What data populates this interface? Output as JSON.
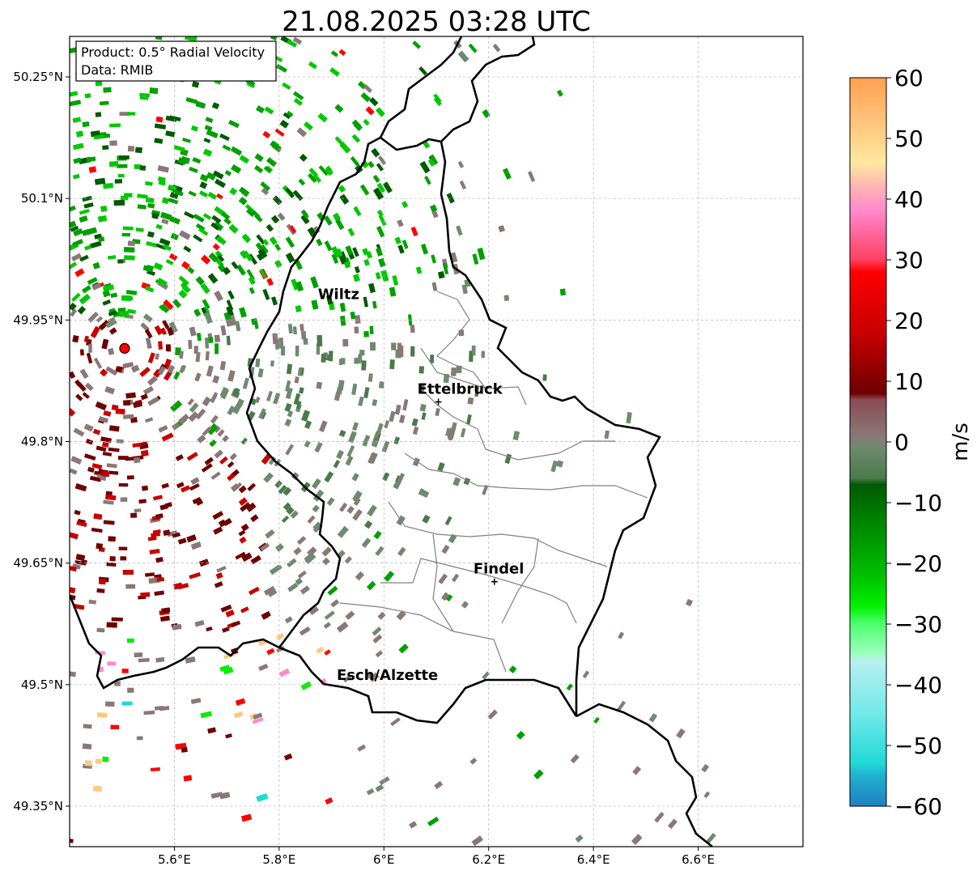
{
  "title": "21.08.2025 03:28 UTC",
  "info_box": {
    "line1": "Product: 0.5° Radial Velocity",
    "line2": "Data: RMIB"
  },
  "map": {
    "lon_range": [
      5.4,
      6.8
    ],
    "lat_range": [
      49.3,
      50.3
    ],
    "radar_site": {
      "lon": 5.505,
      "lat": 49.915
    },
    "grid": true
  },
  "axes": {
    "x_ticks": [
      {
        "value": 5.6,
        "label": "5.6°E"
      },
      {
        "value": 5.8,
        "label": "5.8°E"
      },
      {
        "value": 6.0,
        "label": "6°E"
      },
      {
        "value": 6.2,
        "label": "6.2°E"
      },
      {
        "value": 6.4,
        "label": "6.4°E"
      },
      {
        "value": 6.6,
        "label": "6.6°E"
      }
    ],
    "y_ticks": [
      {
        "value": 50.25,
        "label": "50.25°N"
      },
      {
        "value": 50.1,
        "label": "50.1°N"
      },
      {
        "value": 49.95,
        "label": "49.95°N"
      },
      {
        "value": 49.8,
        "label": "49.8°N"
      },
      {
        "value": 49.65,
        "label": "49.65°N"
      },
      {
        "value": 49.5,
        "label": "49.5°N"
      },
      {
        "value": 49.35,
        "label": "49.35°N"
      }
    ]
  },
  "places": [
    {
      "name": "Wiltz",
      "lon": 5.945,
      "lat": 49.966,
      "marker": false
    },
    {
      "name": "Ettelbruck",
      "lon": 6.104,
      "lat": 49.849,
      "marker": true
    },
    {
      "name": "Findel",
      "lon": 6.211,
      "lat": 49.627,
      "marker": true
    },
    {
      "name": "Esch/Alzette",
      "lon": 5.981,
      "lat": 49.496,
      "marker": false
    }
  ],
  "colorbar": {
    "label": "m/s",
    "range": [
      -60,
      60
    ],
    "ticks": [
      {
        "value": 60,
        "label": "60"
      },
      {
        "value": 50,
        "label": "50"
      },
      {
        "value": 40,
        "label": "40"
      },
      {
        "value": 30,
        "label": "30"
      },
      {
        "value": 20,
        "label": "20"
      },
      {
        "value": 10,
        "label": "10"
      },
      {
        "value": 0,
        "label": "0"
      },
      {
        "value": -10,
        "label": "−10"
      },
      {
        "value": -20,
        "label": "−20"
      },
      {
        "value": -30,
        "label": "−30"
      },
      {
        "value": -40,
        "label": "−40"
      },
      {
        "value": -50,
        "label": "−50"
      },
      {
        "value": -60,
        "label": "−60"
      }
    ],
    "stops": [
      {
        "value": 60,
        "color": "#ffa050"
      },
      {
        "value": 52,
        "color": "#ffc880"
      },
      {
        "value": 46,
        "color": "#ffe8a0"
      },
      {
        "value": 42,
        "color": "#ffb4b4"
      },
      {
        "value": 38,
        "color": "#ff88cc"
      },
      {
        "value": 30,
        "color": "#ff4060"
      },
      {
        "value": 28,
        "color": "#ff0000"
      },
      {
        "value": 18,
        "color": "#c80000"
      },
      {
        "value": 8,
        "color": "#6e0000"
      },
      {
        "value": 7,
        "color": "#8a4a52"
      },
      {
        "value": 1,
        "color": "#8a7878"
      },
      {
        "value": -1,
        "color": "#6f8a6f"
      },
      {
        "value": -6,
        "color": "#4a7a4a"
      },
      {
        "value": -7,
        "color": "#005a00"
      },
      {
        "value": -22,
        "color": "#00c000"
      },
      {
        "value": -27,
        "color": "#00f000"
      },
      {
        "value": -30,
        "color": "#50ff70"
      },
      {
        "value": -35,
        "color": "#a0ffc0"
      },
      {
        "value": -36,
        "color": "#b8f0f0"
      },
      {
        "value": -45,
        "color": "#70e8e8"
      },
      {
        "value": -53,
        "color": "#20d8d8"
      },
      {
        "value": -55,
        "color": "#20b0d0"
      },
      {
        "value": -60,
        "color": "#2080c0"
      }
    ]
  },
  "colors": {
    "border_national": "#000000",
    "border_canton": "#808080",
    "grid": "#b0b0b0",
    "radar_marker": "#ff0000"
  }
}
